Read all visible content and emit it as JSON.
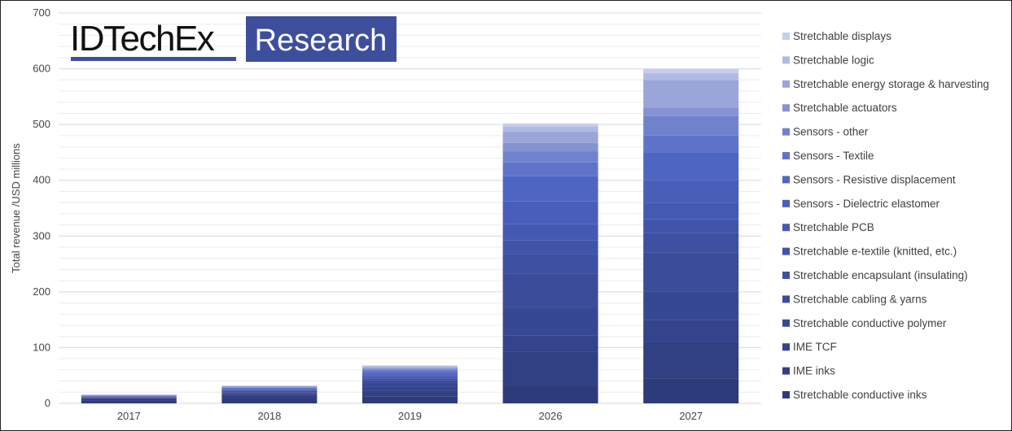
{
  "chart_data": {
    "type": "bar",
    "stacked": true,
    "categories": [
      "2017",
      "2018",
      "2019",
      "2026",
      "2027"
    ],
    "ylabel": "Total revenue /USD millions",
    "ylim": [
      0,
      700
    ],
    "yticks": [
      0,
      100,
      200,
      300,
      400,
      500,
      600,
      700
    ],
    "grid": true,
    "legend_position": "right",
    "series": [
      {
        "name": "Stretchable conductive inks",
        "values": [
          5,
          8,
          12,
          32,
          45
        ],
        "color": "#2e3b7a"
      },
      {
        "name": "IME inks",
        "values": [
          3,
          7,
          10,
          60,
          65
        ],
        "color": "#313f83"
      },
      {
        "name": "IME TCF",
        "values": [
          1,
          3,
          8,
          30,
          40
        ],
        "color": "#34438b"
      },
      {
        "name": "Stretchable conductive polymer",
        "values": [
          1,
          2,
          5,
          50,
          50
        ],
        "color": "#374893"
      },
      {
        "name": "Stretchable cabling & yarns",
        "values": [
          1,
          2,
          6,
          60,
          70
        ],
        "color": "#3a4c9a"
      },
      {
        "name": "Stretchable encapsulant (insulating)",
        "values": [
          0.5,
          1,
          3,
          35,
          35
        ],
        "color": "#3d50a2"
      },
      {
        "name": "Stretchable e-textile (knitted, etc.)",
        "values": [
          0.5,
          1,
          3,
          25,
          25
        ],
        "color": "#4054aa"
      },
      {
        "name": "Stretchable PCB",
        "values": [
          0.5,
          1,
          3,
          30,
          30
        ],
        "color": "#4459b2"
      },
      {
        "name": "Sensors - Dielectric elastomer",
        "values": [
          0.5,
          1,
          3,
          40,
          40
        ],
        "color": "#485eb9"
      },
      {
        "name": "Sensors - Resistive displacement",
        "values": [
          0.5,
          1,
          3,
          45,
          50
        ],
        "color": "#4e66c2"
      },
      {
        "name": "Sensors - Textile",
        "values": [
          0.5,
          1,
          3,
          25,
          30
        ],
        "color": "#5f74c8"
      },
      {
        "name": "Sensors - other",
        "values": [
          0.5,
          1,
          2,
          20,
          35
        ],
        "color": "#7182cd"
      },
      {
        "name": "Stretchable actuators",
        "values": [
          0.5,
          1,
          2,
          15,
          15
        ],
        "color": "#8592d3"
      },
      {
        "name": "Stretchable energy storage & harvesting",
        "values": [
          0.5,
          1,
          2,
          20,
          50
        ],
        "color": "#9aa5da"
      },
      {
        "name": "Stretchable logic",
        "values": [
          0.3,
          0.5,
          2,
          10,
          12
        ],
        "color": "#b1bae3"
      },
      {
        "name": "Stretchable displays",
        "values": [
          0.2,
          0.5,
          1,
          5,
          8
        ],
        "color": "#c7cdec"
      }
    ]
  },
  "logo": {
    "left_text": "IDTechEx",
    "right_text": "Research",
    "brand_color": "#3d4f9c"
  }
}
